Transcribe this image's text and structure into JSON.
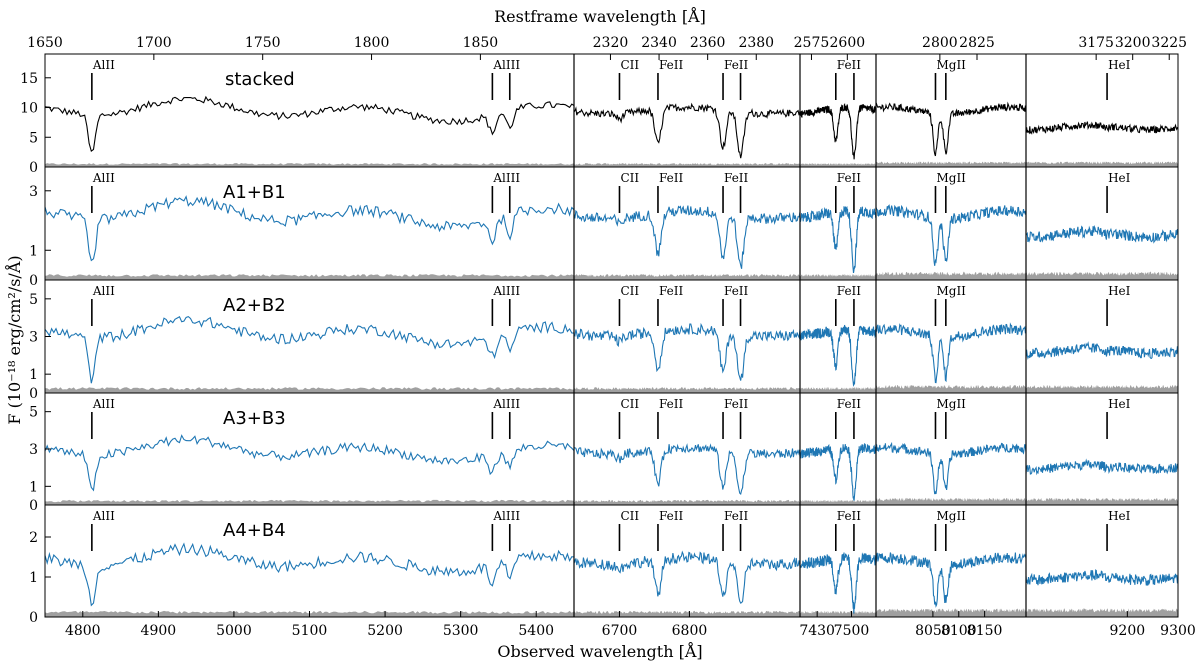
{
  "chart_data": {
    "type": "line",
    "title": "",
    "xlabel_top": "Restframe wavelength [Å]",
    "xlabel_bottom": "Observed wavelength [Å]",
    "ylabel": "F (10⁻¹⁸ erg/cm²/s/Å)",
    "colors": {
      "stacked": "#000000",
      "spectrum": "#1f77b4",
      "error": "#a0a0a0"
    },
    "segments": [
      {
        "obs_range": [
          4750,
          5450
        ],
        "obs_ticks": [
          "4800",
          "4900",
          "5000",
          "5100",
          "5200",
          "5300",
          "5400"
        ],
        "obs_tick_values": [
          4800,
          4900,
          5000,
          5100,
          5200,
          5300,
          5400
        ],
        "rest_range": [
          1650,
          1893
        ],
        "rest_ticks": [
          "1650",
          "1700",
          "1750",
          "1800",
          "1850"
        ],
        "rest_tick_values": [
          1650,
          1700,
          1750,
          1800,
          1850
        ]
      },
      {
        "obs_range": [
          6635,
          6958
        ],
        "obs_ticks": [
          "6700",
          "6800"
        ],
        "obs_tick_values": [
          6700,
          6800
        ],
        "rest_range": [
          2305,
          2398
        ],
        "rest_ticks": [
          "2320",
          "2340",
          "2360",
          "2380"
        ],
        "rest_tick_values": [
          2320,
          2340,
          2360,
          2380
        ]
      },
      {
        "obs_range": [
          7395,
          7550
        ],
        "obs_ticks": [
          "7430",
          "7500"
        ],
        "obs_tick_values": [
          7430,
          7500
        ],
        "rest_range": [
          2567,
          2620
        ],
        "rest_ticks": [
          "2575",
          "2600"
        ],
        "rest_tick_values": [
          2575,
          2600
        ]
      },
      {
        "obs_range": [
          7940,
          8230
        ],
        "obs_ticks": [
          "8050",
          "8100",
          "8150"
        ],
        "obs_tick_values": [
          8050,
          8100,
          8150
        ],
        "rest_range": [
          2757,
          2858
        ],
        "rest_ticks": [
          "2800",
          "2825"
        ],
        "rest_tick_values": [
          2800,
          2825
        ]
      },
      {
        "obs_range": [
          9000,
          9300
        ],
        "obs_ticks": [
          "9200",
          "9300"
        ],
        "obs_tick_values": [
          9200,
          9300
        ],
        "rest_range": [
          3127,
          3231
        ],
        "rest_ticks": [
          "3175",
          "3200",
          "3225"
        ],
        "rest_tick_values": [
          3175,
          3200,
          3225
        ]
      }
    ],
    "lines": [
      {
        "label": "AlII",
        "obs": 4812
      },
      {
        "label": "AlIII",
        "obs": 5342
      },
      {
        "label": "",
        "obs": 5365
      },
      {
        "label": "CII",
        "obs": 6700
      },
      {
        "label": "FeII",
        "obs": 6755
      },
      {
        "label": "FeII",
        "obs": 6848
      },
      {
        "label": "",
        "obs": 6873
      },
      {
        "label": "FeII",
        "obs": 7468
      },
      {
        "label": "",
        "obs": 7505
      },
      {
        "label": "MgII",
        "obs": 8055
      },
      {
        "label": "",
        "obs": 8075
      },
      {
        "label": "HeI",
        "obs": 9160
      }
    ],
    "panels": [
      {
        "name": "stacked",
        "ylim": [
          0,
          19
        ],
        "yticks": [
          0,
          5,
          10,
          15
        ],
        "continuum": 9.5,
        "noise": 0.6
      },
      {
        "name": "A1+B1",
        "ylim": [
          0,
          3.8
        ],
        "yticks": [
          0,
          1,
          3
        ],
        "continuum": 2.2,
        "noise": 0.18
      },
      {
        "name": "A2+B2",
        "ylim": [
          0,
          6.0
        ],
        "yticks": [
          0,
          1,
          3,
          5
        ],
        "continuum": 3.2,
        "noise": 0.28
      },
      {
        "name": "A3+B3",
        "ylim": [
          0,
          6.0
        ],
        "yticks": [
          0,
          1,
          3,
          5
        ],
        "continuum": 2.9,
        "noise": 0.25
      },
      {
        "name": "A4+B4",
        "ylim": [
          0,
          2.8
        ],
        "yticks": [
          0,
          1,
          2
        ],
        "continuum": 1.4,
        "noise": 0.14
      }
    ]
  }
}
